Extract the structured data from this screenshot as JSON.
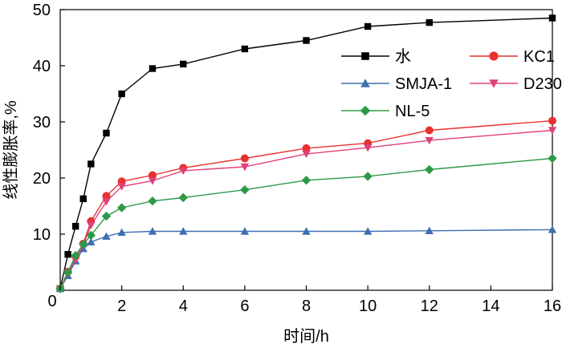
{
  "chart_data": {
    "type": "line",
    "title": "",
    "xlabel": "时间/h",
    "ylabel": "线性膨胀率,%",
    "xlim": [
      0,
      16
    ],
    "ylim": [
      0,
      50
    ],
    "x_ticks": [
      "0",
      "2",
      "4",
      "6",
      "8",
      "10",
      "12",
      "14",
      "16"
    ],
    "y_ticks": [
      "10",
      "20",
      "30",
      "40",
      "50"
    ],
    "grid": false,
    "legend_position": "top-right",
    "series": [
      {
        "name": "水",
        "color": "#000000",
        "marker": "square",
        "x": [
          0,
          0.25,
          0.5,
          0.75,
          1,
          1.5,
          2,
          3,
          4,
          6,
          8,
          10,
          12,
          16
        ],
        "y": [
          0.3,
          6.4,
          11.4,
          16.3,
          22.5,
          28.0,
          35.0,
          39.5,
          40.3,
          43.0,
          44.5,
          47.0,
          47.7,
          48.5
        ]
      },
      {
        "name": "KC1",
        "color": "#e8312f",
        "marker": "circle",
        "x": [
          0,
          0.25,
          0.5,
          0.75,
          1,
          1.5,
          2,
          3,
          4,
          6,
          8,
          10,
          12,
          16
        ],
        "y": [
          0.3,
          3.3,
          6.0,
          8.3,
          12.3,
          16.8,
          19.4,
          20.5,
          21.8,
          23.5,
          25.3,
          26.2,
          28.5,
          30.2
        ]
      },
      {
        "name": "SMJA-1",
        "color": "#3e6fb0",
        "marker": "triangle-up",
        "x": [
          0,
          0.25,
          0.5,
          0.75,
          1,
          1.5,
          2,
          3,
          4,
          6,
          8,
          10,
          12,
          16
        ],
        "y": [
          0.3,
          2.6,
          5.2,
          7.4,
          8.6,
          9.6,
          10.3,
          10.5,
          10.5,
          10.5,
          10.5,
          10.5,
          10.6,
          10.8
        ]
      },
      {
        "name": "D230",
        "color": "#e0407a",
        "marker": "triangle-down",
        "x": [
          0,
          0.25,
          0.5,
          0.75,
          1,
          1.5,
          2,
          3,
          4,
          6,
          8,
          10,
          12,
          16
        ],
        "y": [
          0.3,
          3.0,
          5.5,
          8.0,
          11.6,
          15.8,
          18.5,
          19.5,
          21.3,
          22.0,
          24.3,
          25.4,
          26.7,
          28.5
        ]
      },
      {
        "name": "NL-5",
        "color": "#2e9a48",
        "marker": "diamond",
        "x": [
          0,
          0.25,
          0.5,
          0.75,
          1,
          1.5,
          2,
          3,
          4,
          6,
          8,
          10,
          12,
          16
        ],
        "y": [
          0.3,
          3.2,
          6.2,
          8.2,
          9.8,
          13.2,
          14.7,
          15.9,
          16.5,
          17.9,
          19.6,
          20.3,
          21.5,
          23.5
        ]
      }
    ]
  }
}
